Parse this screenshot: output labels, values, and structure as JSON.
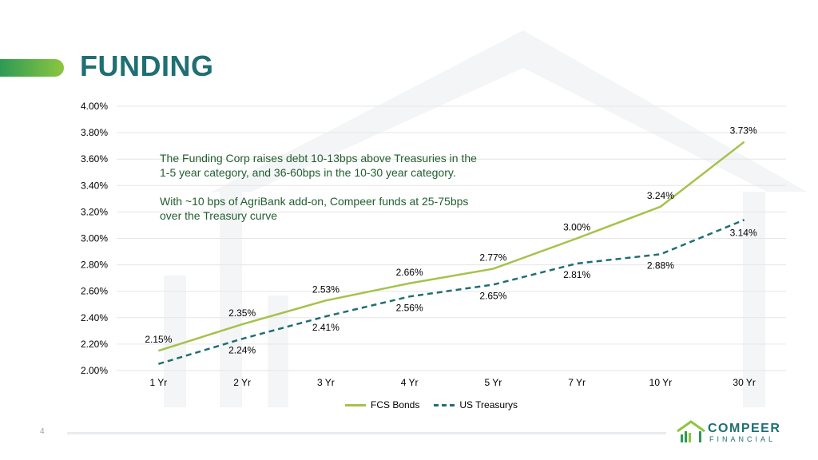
{
  "slide": {
    "title": "FUNDING",
    "page_number": "4",
    "annotation": [
      "The Funding Corp raises debt 10-13bps above Treasuries in the 1-5 year category, and 36-60bps in the 10-30 year category.",
      "With ~10 bps of AgriBank add-on, Compeer funds at 25-75bps over the Treasury curve"
    ],
    "logo": {
      "name": "COMPEER",
      "sub": "FINANCIAL"
    }
  },
  "colors": {
    "fcs": "#a5c24a",
    "treasury": "#1f6f73",
    "title": "#1f6f73",
    "annotation_text": "#215e2f"
  },
  "chart_data": {
    "type": "line",
    "categories": [
      "1 Yr",
      "2 Yr",
      "3 Yr",
      "4 Yr",
      "5 Yr",
      "7 Yr",
      "10 Yr",
      "30 Yr"
    ],
    "series": [
      {
        "name": "FCS Bonds",
        "values": [
          2.15,
          2.35,
          2.53,
          2.66,
          2.77,
          3.0,
          3.24,
          3.73
        ],
        "style": "solid",
        "color": "#a5c24a"
      },
      {
        "name": "US Treasurys",
        "values": [
          2.05,
          2.24,
          2.41,
          2.56,
          2.65,
          2.81,
          2.88,
          3.14
        ],
        "style": "dashed",
        "color": "#1f6f73",
        "labeled": [
          false,
          true,
          true,
          true,
          true,
          true,
          true,
          true
        ]
      }
    ],
    "y_ticks": [
      "4.00%",
      "3.80%",
      "3.60%",
      "3.40%",
      "3.20%",
      "3.00%",
      "2.80%",
      "2.60%",
      "2.40%",
      "2.20%",
      "2.00%"
    ],
    "ylim": [
      2.0,
      4.0
    ],
    "grid": true,
    "legend": "bottom"
  }
}
